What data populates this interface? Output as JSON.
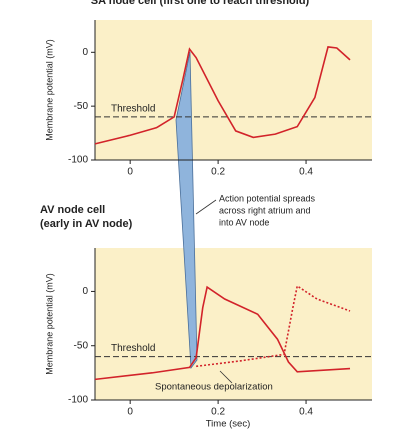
{
  "chart_data": [
    {
      "type": "line",
      "title": "SA node cell (first one to reach threshold)",
      "ylabel": "Membrane potential (mV)",
      "xlim": [
        -0.08,
        0.55
      ],
      "ylim": [
        -100,
        30
      ],
      "xticks": [
        0,
        0.2,
        0.4
      ],
      "yticks": [
        0,
        -50,
        -100
      ],
      "background": "#fbf0c8",
      "threshold": -60,
      "threshold_label": "Threshold",
      "series": [
        {
          "color": "#d2232a",
          "dashed": false,
          "x": [
            -0.08,
            0.0,
            0.06,
            0.1,
            0.12,
            0.135,
            0.15,
            0.2,
            0.24,
            0.28,
            0.33,
            0.38,
            0.42,
            0.45,
            0.47,
            0.5
          ],
          "values": [
            -85,
            -77,
            -70,
            -60,
            -25,
            3,
            -5,
            -45,
            -73,
            -79,
            -76,
            -69,
            -42,
            5,
            4,
            -7
          ]
        }
      ]
    },
    {
      "type": "line",
      "title_lines": [
        "AV node cell",
        "(early in AV node)"
      ],
      "ylabel": "Membrane potential (mV)",
      "xlabel": "Time (sec)",
      "xlim": [
        -0.08,
        0.55
      ],
      "ylim": [
        -100,
        40
      ],
      "xticks": [
        0,
        0.2,
        0.4
      ],
      "yticks": [
        0,
        -50,
        -100
      ],
      "background": "#fbf0c8",
      "threshold": -60,
      "threshold_label": "Threshold",
      "annotation_lines": [
        "Action potential spreads",
        "across right atrium and",
        "into AV node"
      ],
      "annotation2": "Spontaneous depolarization",
      "series": [
        {
          "color": "#d2232a",
          "dashed": false,
          "x": [
            -0.08,
            0.05,
            0.135,
            0.15,
            0.165,
            0.175,
            0.215,
            0.29,
            0.335,
            0.36,
            0.38,
            0.5
          ],
          "values": [
            -81,
            -75,
            -70,
            -61,
            -15,
            4,
            -7,
            -21,
            -44,
            -65,
            -74,
            -71
          ]
        },
        {
          "color": "#d2232a",
          "dashed": true,
          "x": [
            0.15,
            0.25,
            0.35,
            0.37,
            0.38,
            0.425,
            0.5
          ],
          "values": [
            -69,
            -64,
            -58,
            -15,
            5,
            -7,
            -18
          ]
        }
      ]
    }
  ]
}
